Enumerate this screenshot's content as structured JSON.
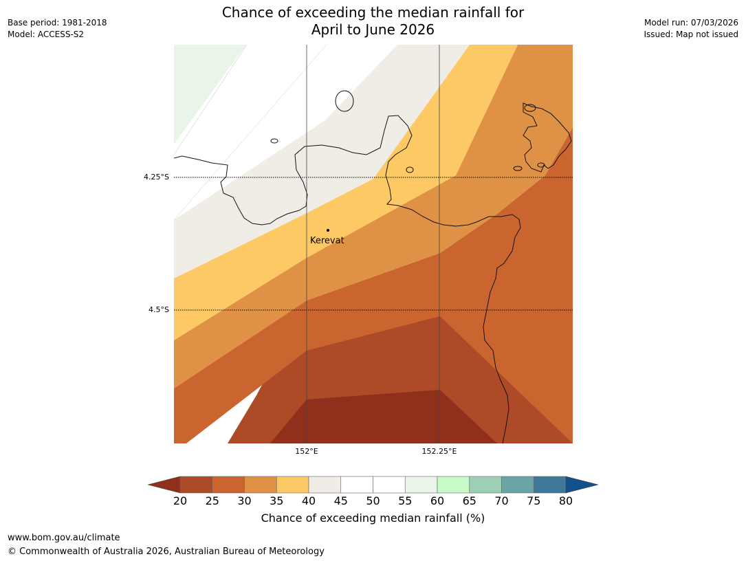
{
  "title": {
    "line1": "Chance of exceeding the median rainfall for",
    "line2": "April to June 2026"
  },
  "meta_left": {
    "base_period": "Base period: 1981-2018",
    "model": "Model: ACCESS-S2"
  },
  "meta_right": {
    "model_run": "Model run: 07/03/2026",
    "issued": "Issued: Map not issued"
  },
  "map": {
    "lat_labels": [
      "4.25°S",
      "4.5°S"
    ],
    "lon_labels": [
      "152°E",
      "152.25°E"
    ],
    "place": {
      "name": "Kerevat"
    }
  },
  "colorbar": {
    "title": "Chance of exceeding median rainfall (%)",
    "ticks": [
      "20",
      "25",
      "30",
      "35",
      "40",
      "45",
      "50",
      "55",
      "60",
      "65",
      "70",
      "75",
      "80"
    ],
    "under_color": "#8f301d",
    "over_color": "#12508a",
    "colors": [
      "#ad4a28",
      "#ca6530",
      "#df9145",
      "#fcc965",
      "#f0ece6",
      "#ffffff",
      "#ffffff",
      "#eaf5e9",
      "#c8fac8",
      "#9dcfb7",
      "#6aa4a5",
      "#3f7899"
    ]
  },
  "footer": {
    "url": "www.bom.gov.au/climate",
    "copyright": "© Commonwealth of Australia 2026, Australian Bureau of Meteorology"
  }
}
